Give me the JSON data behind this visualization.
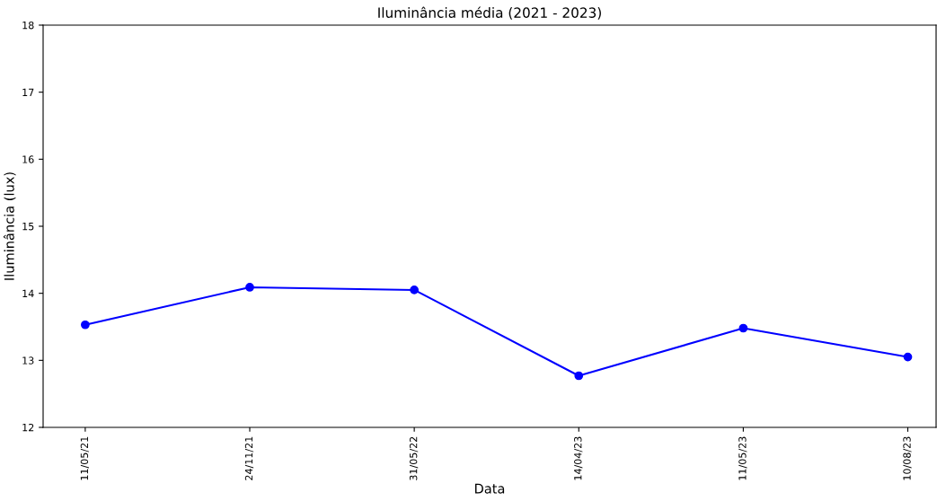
{
  "chart_data": {
    "type": "line",
    "title": "Iluminância média (2021 - 2023)",
    "xlabel": "Data",
    "ylabel": "Iluminância (lux)",
    "categories": [
      "11/05/21",
      "24/11/21",
      "31/05/22",
      "14/04/23",
      "11/05/23",
      "10/08/23"
    ],
    "series": [
      {
        "color": "#0000ff",
        "values": [
          13.53,
          14.09,
          14.05,
          12.77,
          13.48,
          13.05
        ]
      }
    ],
    "ylim": [
      12,
      18
    ],
    "yticks": [
      12,
      13,
      14,
      15,
      16,
      17,
      18
    ],
    "grid": false,
    "legend": false,
    "marker": "circle",
    "line_style": "solid"
  }
}
